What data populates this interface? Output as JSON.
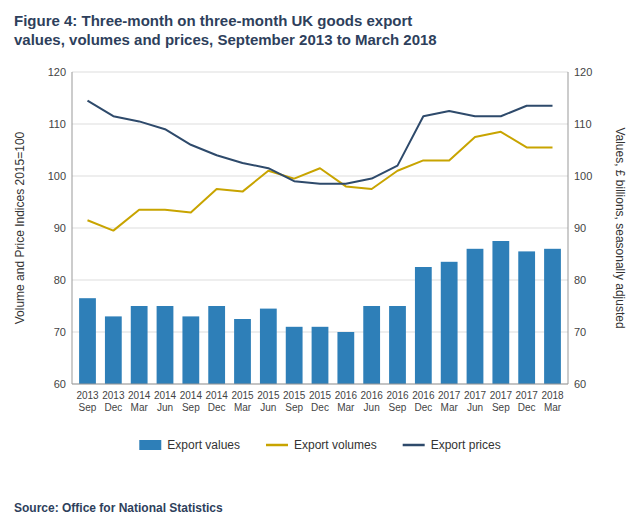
{
  "chart_data": {
    "type": "bar",
    "title": "Figure 4: Three-month on three-month UK goods export",
    "subtitle": "values, volumes and prices, September 2013 to March 2018",
    "source": "Source: Office for National Statistics",
    "categories": [
      "2013\nSep",
      "2013\nDec",
      "2014\nMar",
      "2014\nJun",
      "2014\nSep",
      "2014\nDec",
      "2015\nMar",
      "2015\nJun",
      "2015\nSep",
      "2015\nDec",
      "2016\nMar",
      "2016\nJun",
      "2016\nSep",
      "2016\nDec",
      "2017\nMar",
      "2017\nJun",
      "2017\nSep",
      "2017\nDec",
      "2018\nMar"
    ],
    "series": [
      {
        "name": "Export values",
        "type": "bar",
        "axis": "y2",
        "color": "#2e7fb8",
        "values": [
          76.5,
          73.0,
          75.0,
          75.0,
          73.0,
          75.0,
          72.5,
          74.5,
          71.0,
          71.0,
          70.0,
          75.0,
          75.0,
          82.5,
          83.5,
          86.0,
          87.5,
          85.5,
          86.0
        ]
      },
      {
        "name": "Export volumes",
        "type": "line",
        "color": "#c8a400",
        "values": [
          91.5,
          89.5,
          93.5,
          93.5,
          93.0,
          97.5,
          97.0,
          101.0,
          99.5,
          101.5,
          98.0,
          97.5,
          101.0,
          103.0,
          103.0,
          107.5,
          108.5,
          105.5,
          105.5
        ]
      },
      {
        "name": "Export prices",
        "type": "line",
        "color": "#2e4a6b",
        "values": [
          114.5,
          111.5,
          110.5,
          109.0,
          106.0,
          104.0,
          102.5,
          101.5,
          99.0,
          98.5,
          98.5,
          99.5,
          102.0,
          111.5,
          112.5,
          111.5,
          111.5,
          113.5,
          113.5
        ]
      }
    ],
    "ylabel": "Volume and Price Indices 2015=100",
    "y2label": "Values, £ billions, seasonally adjusted",
    "ylim": [
      60,
      120
    ],
    "yticks": [
      60,
      70,
      80,
      90,
      100,
      110,
      120
    ],
    "y2lim": [
      60,
      120
    ],
    "y2ticks": [
      60,
      70,
      80,
      90,
      100,
      110,
      120
    ],
    "grid": true,
    "legend": "bottom"
  }
}
